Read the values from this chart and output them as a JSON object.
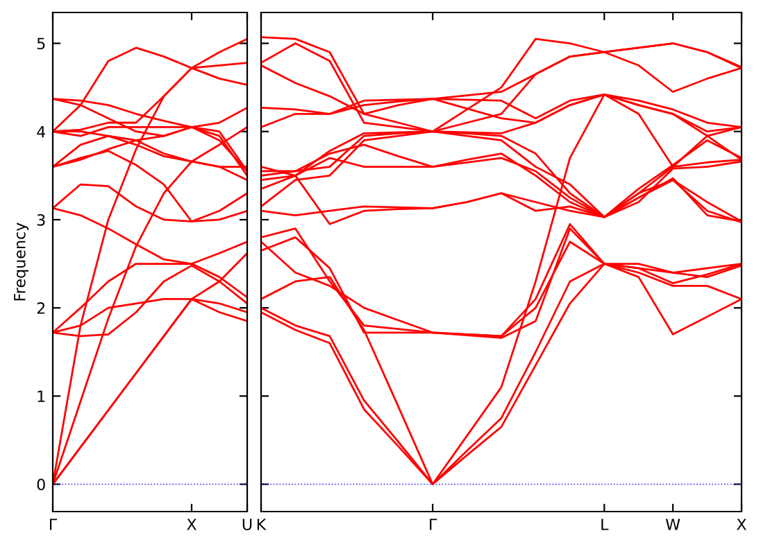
{
  "chart_data": [
    {
      "type": "line",
      "ylabel": "Frequency",
      "categories": [
        "Γ",
        null,
        null,
        null,
        null,
        "X",
        null,
        "U"
      ],
      "ylim": [
        -0.31,
        5.35
      ],
      "yticks": [
        0,
        1,
        2,
        3,
        4,
        5
      ],
      "ref_lines": [
        {
          "axis": "y",
          "value": 0,
          "color": "#4040ff",
          "line_style": "dotted"
        }
      ],
      "series": [
        {
          "color": "#ff0000",
          "values": [
            0,
            0.42,
            0.84,
            1.26,
            1.68,
            2.1,
            1.95,
            1.85
          ]
        },
        {
          "color": "#ff0000",
          "values": [
            0,
            0.42,
            0.84,
            1.26,
            1.68,
            2.1,
            2.3,
            2.62
          ]
        },
        {
          "color": "#ff0000",
          "values": [
            0,
            0.94,
            1.88,
            2.7,
            3.3,
            3.66,
            3.6,
            3.45
          ]
        },
        {
          "color": "#ff0000",
          "values": [
            0,
            1.8,
            3.0,
            3.8,
            4.4,
            4.72,
            4.75,
            4.78
          ]
        },
        {
          "color": "#ff0000",
          "values": [
            1.72,
            1.68,
            1.7,
            1.95,
            2.3,
            2.48,
            2.3,
            2.05
          ]
        },
        {
          "color": "#ff0000",
          "values": [
            1.72,
            1.8,
            2.0,
            2.05,
            2.1,
            2.1,
            2.05,
            1.95
          ]
        },
        {
          "color": "#ff0000",
          "values": [
            1.72,
            2.0,
            2.3,
            2.5,
            2.5,
            2.5,
            2.62,
            2.75
          ]
        },
        {
          "color": "#ff0000",
          "values": [
            3.13,
            3.05,
            2.9,
            2.72,
            2.55,
            2.5,
            2.35,
            2.12
          ]
        },
        {
          "color": "#ff0000",
          "values": [
            3.13,
            3.4,
            3.38,
            3.15,
            3.0,
            2.98,
            3.0,
            3.1
          ]
        },
        {
          "color": "#ff0000",
          "values": [
            3.6,
            3.7,
            3.78,
            3.62,
            3.4,
            2.98,
            3.1,
            3.3
          ]
        },
        {
          "color": "#ff0000",
          "values": [
            3.6,
            3.68,
            3.8,
            3.9,
            3.95,
            4.05,
            3.95,
            3.5
          ]
        },
        {
          "color": "#ff0000",
          "values": [
            3.6,
            3.85,
            3.95,
            3.9,
            3.75,
            3.66,
            3.85,
            4.05
          ]
        },
        {
          "color": "#ff0000",
          "values": [
            4.0,
            3.95,
            4.05,
            4.05,
            4.05,
            4.05,
            4.0,
            3.55
          ]
        },
        {
          "color": "#ff0000",
          "values": [
            4.0,
            4.0,
            3.95,
            3.85,
            3.72,
            3.66,
            3.6,
            3.6
          ]
        },
        {
          "color": "#ff0000",
          "values": [
            4.0,
            4.02,
            4.1,
            4.1,
            4.4,
            4.72,
            4.6,
            4.53
          ]
        },
        {
          "color": "#ff0000",
          "values": [
            4.37,
            4.35,
            4.3,
            4.2,
            4.12,
            4.05,
            4.1,
            4.27
          ]
        },
        {
          "color": "#ff0000",
          "values": [
            4.37,
            4.3,
            4.15,
            4.0,
            3.95,
            4.05,
            3.9,
            3.55
          ]
        },
        {
          "color": "#ff0000",
          "values": [
            4.0,
            4.3,
            4.8,
            4.95,
            4.85,
            4.72,
            4.9,
            5.05
          ]
        }
      ]
    },
    {
      "type": "line",
      "tick_labels": "x",
      "categories": [
        "K",
        null,
        null,
        null,
        null,
        "Γ",
        null,
        null,
        null,
        null,
        "L",
        null,
        "W",
        null,
        "X"
      ],
      "ylim": [
        -0.31,
        5.35
      ],
      "yticks": [
        0,
        1,
        2,
        3,
        4,
        5
      ],
      "ref_lines": [
        {
          "axis": "y",
          "value": 0,
          "color": "#4040ff",
          "line_style": "dotted"
        }
      ],
      "series": [
        {
          "color": "#ff0000",
          "values": [
            1.95,
            1.75,
            1.6,
            0.85,
            0.43,
            0,
            0.33,
            0.65,
            1.35,
            2.05,
            2.5,
            2.4,
            2.25,
            2.25,
            2.1
          ]
        },
        {
          "color": "#ff0000",
          "values": [
            2.0,
            1.8,
            1.68,
            0.95,
            0.48,
            0,
            0.38,
            0.75,
            1.5,
            2.3,
            2.5,
            2.35,
            1.7,
            1.9,
            2.1
          ]
        },
        {
          "color": "#ff0000",
          "values": [
            2.1,
            2.3,
            2.35,
            1.75,
            0.88,
            0,
            0.55,
            1.1,
            2.3,
            3.7,
            4.42,
            4.3,
            4.2,
            3.95,
            3.68
          ]
        },
        {
          "color": "#ff0000",
          "values": [
            2.65,
            2.8,
            2.45,
            1.72,
            1.72,
            1.72,
            1.7,
            1.68,
            2.0,
            2.75,
            2.5,
            2.45,
            2.4,
            2.35,
            2.48
          ]
        },
        {
          "color": "#ff0000",
          "values": [
            2.75,
            2.4,
            2.25,
            2.0,
            1.86,
            1.72,
            1.69,
            1.66,
            1.85,
            2.9,
            2.5,
            2.5,
            2.4,
            2.45,
            2.5
          ]
        },
        {
          "color": "#ff0000",
          "values": [
            2.8,
            2.9,
            2.3,
            1.8,
            1.76,
            1.72,
            1.7,
            1.68,
            2.1,
            2.95,
            2.5,
            2.45,
            2.28,
            2.38,
            2.5
          ]
        },
        {
          "color": "#ff0000",
          "values": [
            3.1,
            3.05,
            3.1,
            3.15,
            3.14,
            3.13,
            3.2,
            3.3,
            3.1,
            3.15,
            3.03,
            3.3,
            3.45,
            3.1,
            2.97
          ]
        },
        {
          "color": "#ff0000",
          "values": [
            3.35,
            3.5,
            2.95,
            3.1,
            3.12,
            3.13,
            3.2,
            3.3,
            3.2,
            3.1,
            3.03,
            3.25,
            3.47,
            3.05,
            2.98
          ]
        },
        {
          "color": "#ff0000",
          "values": [
            3.45,
            3.5,
            3.7,
            3.6,
            3.6,
            3.6,
            3.68,
            3.75,
            3.5,
            3.2,
            3.03,
            3.3,
            3.6,
            3.65,
            3.68
          ]
        },
        {
          "color": "#ff0000",
          "values": [
            3.5,
            3.55,
            3.75,
            3.85,
            3.72,
            3.6,
            3.65,
            3.7,
            3.55,
            3.25,
            3.03,
            3.35,
            3.62,
            3.9,
            3.7
          ]
        },
        {
          "color": "#ff0000",
          "values": [
            3.55,
            3.55,
            3.6,
            3.95,
            3.98,
            4.0,
            3.98,
            3.95,
            3.75,
            3.3,
            3.03,
            3.2,
            3.58,
            3.6,
            3.66
          ]
        },
        {
          "color": "#ff0000",
          "values": [
            3.6,
            3.5,
            3.78,
            3.98,
            3.99,
            4.0,
            3.99,
            3.98,
            4.1,
            4.3,
            4.42,
            4.2,
            3.6,
            3.95,
            4.05
          ]
        },
        {
          "color": "#ff0000",
          "values": [
            4.05,
            4.2,
            4.2,
            4.3,
            4.34,
            4.37,
            4.26,
            4.15,
            4.1,
            4.3,
            4.42,
            4.3,
            4.2,
            4.0,
            4.05
          ]
        },
        {
          "color": "#ff0000",
          "values": [
            4.27,
            4.25,
            4.2,
            4.35,
            4.36,
            4.37,
            4.36,
            4.35,
            4.15,
            4.35,
            4.42,
            4.35,
            4.25,
            4.1,
            4.05
          ]
        },
        {
          "color": "#ff0000",
          "values": [
            4.75,
            4.55,
            4.4,
            4.2,
            4.3,
            4.37,
            4.41,
            4.45,
            4.65,
            4.85,
            4.9,
            4.75,
            4.45,
            4.6,
            4.72
          ]
        },
        {
          "color": "#ff0000",
          "values": [
            4.78,
            5.0,
            4.8,
            4.1,
            4.05,
            4.0,
            4.1,
            4.2,
            4.65,
            4.85,
            4.9,
            4.95,
            5.0,
            4.9,
            4.72
          ]
        },
        {
          "color": "#ff0000",
          "values": [
            5.07,
            5.05,
            4.9,
            4.2,
            4.1,
            4.0,
            4.25,
            4.5,
            5.05,
            5.0,
            4.9,
            4.95,
            5.0,
            4.9,
            4.73
          ]
        },
        {
          "color": "#ff0000",
          "values": [
            3.15,
            3.45,
            3.5,
            3.9,
            3.95,
            4.0,
            3.95,
            3.9,
            3.6,
            3.4,
            3.03,
            3.25,
            3.45,
            3.2,
            2.98
          ]
        }
      ]
    }
  ]
}
